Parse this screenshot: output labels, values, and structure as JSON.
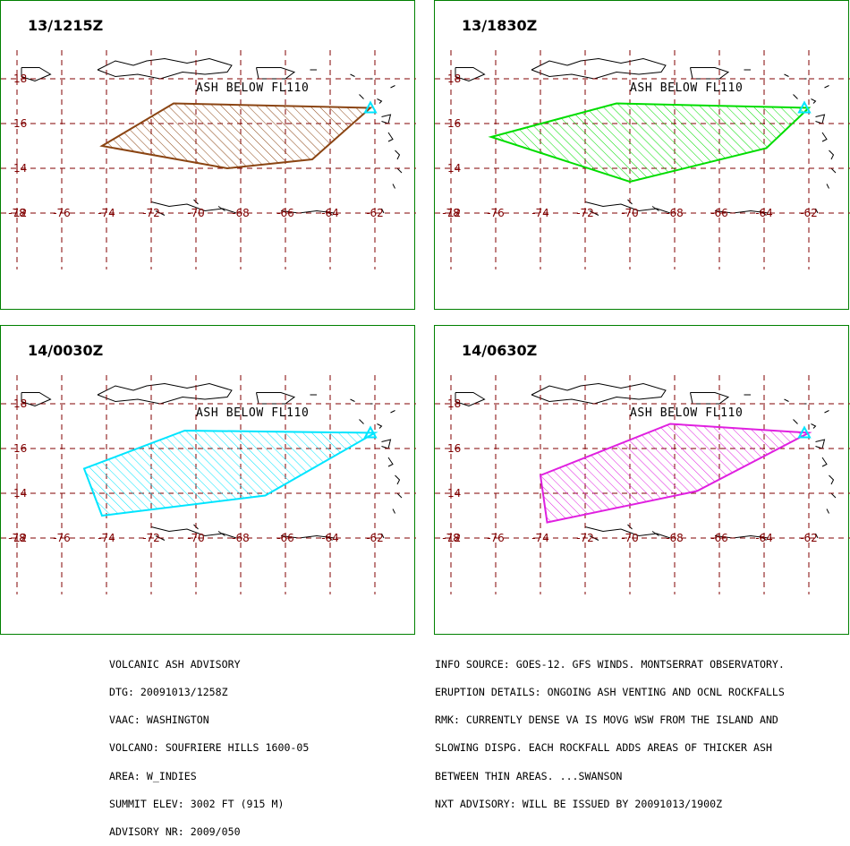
{
  "map": {
    "x_ticks": [
      "-78",
      "-76",
      "-74",
      "-72",
      "-70",
      "-68",
      "-66",
      "-64",
      "-62"
    ],
    "y_ticks": [
      "18",
      "16",
      "14",
      "12"
    ],
    "ash_label": "ASH BELOW FL110",
    "grid_color": "#800000",
    "volcano_color": "#00e5ff"
  },
  "panels": [
    {
      "title": "13/1215Z",
      "color": "#8b4513",
      "polygon": [
        [
          -62.2,
          16.7
        ],
        [
          -71,
          16.9
        ],
        [
          -74.2,
          15.0
        ],
        [
          -68.6,
          14.0
        ],
        [
          -64.8,
          14.4
        ],
        [
          -62.2,
          16.7
        ]
      ]
    },
    {
      "title": "13/1830Z",
      "color": "#00dd00",
      "polygon": [
        [
          -62.0,
          16.7
        ],
        [
          -70.6,
          16.9
        ],
        [
          -76.2,
          15.4
        ],
        [
          -70.0,
          13.4
        ],
        [
          -63.9,
          14.9
        ],
        [
          -62.0,
          16.7
        ]
      ]
    },
    {
      "title": "14/0030Z",
      "color": "#00e5ff",
      "polygon": [
        [
          -62.0,
          16.7
        ],
        [
          -70.5,
          16.8
        ],
        [
          -75.0,
          15.1
        ],
        [
          -74.2,
          13.0
        ],
        [
          -66.9,
          13.9
        ],
        [
          -62.0,
          16.7
        ]
      ]
    },
    {
      "title": "14/0630Z",
      "color": "#e020e0",
      "polygon": [
        [
          -62.0,
          16.7
        ],
        [
          -68.2,
          17.1
        ],
        [
          -74.0,
          14.8
        ],
        [
          -73.7,
          12.7
        ],
        [
          -67.0,
          14.1
        ],
        [
          -62.0,
          16.7
        ]
      ]
    }
  ],
  "advisory_left": [
    "VOLCANIC ASH ADVISORY",
    "DTG: 20091013/1258Z",
    "VAAC: WASHINGTON",
    "VOLCANO: SOUFRIERE HILLS 1600-05",
    "AREA: W_INDIES",
    "SUMMIT ELEV: 3002 FT (915 M)",
    "ADVISORY NR: 2009/050"
  ],
  "advisory_right": [
    "INFO SOURCE: GOES-12. GFS WINDS. MONTSERRAT OBSERVATORY.",
    "ERUPTION DETAILS: ONGOING ASH VENTING AND OCNL ROCKFALLS",
    "RMK: CURRENTLY DENSE VA IS MOVG WSW FROM THE ISLAND AND",
    "SLOWING DISPG. EACH ROCKFALL ADDS AREAS OF THICKER ASH",
    "BETWEEN THIN AREAS. ...SWANSON",
    "NXT ADVISORY: WILL BE ISSUED BY 20091013/1900Z"
  ]
}
